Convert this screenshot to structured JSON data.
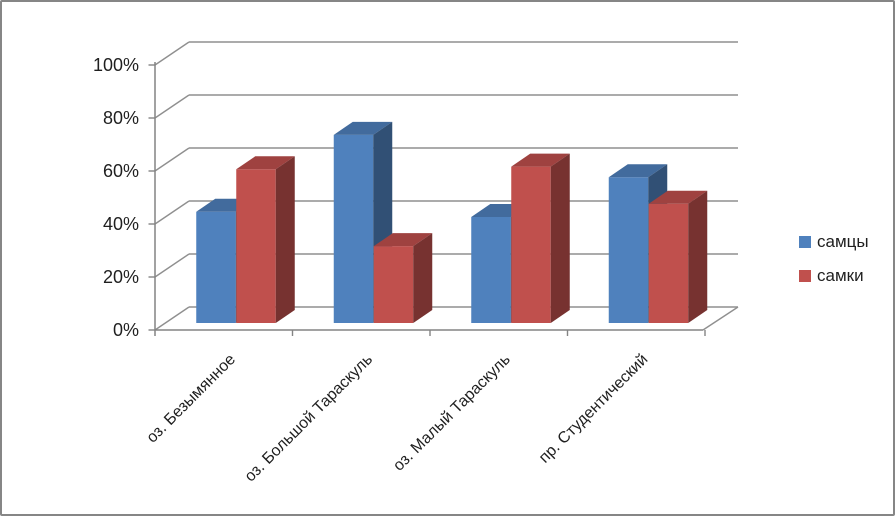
{
  "frame": {
    "background": "#FFFFFF",
    "border_color": "#868686"
  },
  "chart_data": {
    "type": "bar",
    "projection": "3d-clustered-column",
    "title": "",
    "categories": [
      "оз. Безымянное",
      "оз. Большой Тараскуль",
      "оз. Малый Тараскуль",
      "пр. Студентический"
    ],
    "series": [
      {
        "name": "самцы",
        "color": "#4F81BD",
        "values": [
          42,
          71,
          40,
          55
        ]
      },
      {
        "name": "самки",
        "color": "#C0504D",
        "values": [
          58,
          29,
          59,
          45
        ]
      }
    ],
    "y_axis": {
      "ticks": [
        "100%",
        "80%",
        "60%",
        "40%",
        "20%",
        "0%"
      ],
      "min": 0,
      "max": 100,
      "step": 20,
      "format": "percent"
    },
    "x_axis": {
      "label_rotation_deg": 45
    },
    "grid": true,
    "gridline_color": "#8F8F8F",
    "axis_color": "#848484",
    "text_color": "#1F1F1F",
    "legend": {
      "position": "right",
      "entries": [
        "самцы",
        "самки"
      ]
    }
  }
}
